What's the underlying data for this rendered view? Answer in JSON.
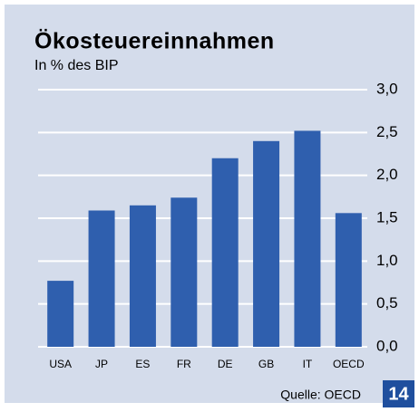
{
  "chart_data": {
    "type": "bar",
    "title": "Ökosteuereinnahmen",
    "subtitle": "In % des BIP",
    "categories": [
      "USA",
      "JP",
      "ES",
      "FR",
      "DE",
      "GB",
      "IT",
      "OECD"
    ],
    "values": [
      0.77,
      1.59,
      1.65,
      1.74,
      2.2,
      2.4,
      2.52,
      1.56
    ],
    "color": "#2f5fae",
    "ylim": [
      0,
      3
    ],
    "yticks": [
      {
        "value": 0,
        "label": "0,0"
      },
      {
        "value": 0.5,
        "label": "0,5"
      },
      {
        "value": 1,
        "label": "1,0"
      },
      {
        "value": 1.5,
        "label": "1,5"
      },
      {
        "value": 2,
        "label": "2,0"
      },
      {
        "value": 2.5,
        "label": "2,5"
      },
      {
        "value": 3,
        "label": "3,0"
      }
    ],
    "grid": true,
    "source": "Quelle: OECD",
    "page_number": "14"
  }
}
